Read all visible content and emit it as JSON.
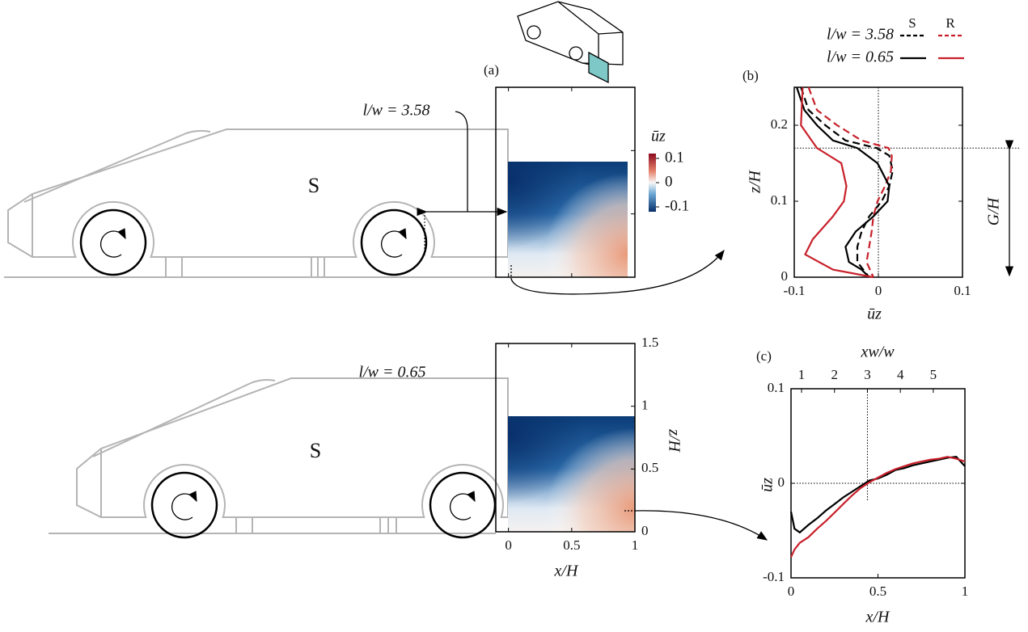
{
  "chart_data": [
    {
      "type": "heatmap",
      "label": "(a)",
      "xlabel": "x/H",
      "ylabel": "z/H",
      "xlim": [
        -0.1,
        1
      ],
      "xticks": [
        0,
        0.5,
        1
      ],
      "ylim": [
        0,
        1.5
      ],
      "yticks": [
        0,
        0.5,
        1,
        1.5
      ],
      "colorbar": {
        "label": "ūz",
        "lim": [
          -0.12,
          0.12
        ],
        "ticks": [
          0.1,
          0,
          -0.1
        ]
      },
      "annotations": [
        "l/w = 3.58",
        "S",
        "l/w = 0.65",
        "S"
      ]
    },
    {
      "type": "line",
      "label": "(b)",
      "xlabel": "ūz",
      "ylabel": "z/H",
      "annotation": "G/H",
      "xlim": [
        -0.1,
        0.1
      ],
      "xticks": [
        -0.1,
        0,
        0.1
      ],
      "ylim": [
        0,
        0.25
      ],
      "yticks": [
        0,
        0.1,
        0.2
      ],
      "refline_x": 0,
      "refline_y": 0.17,
      "legend": {
        "columns": [
          "S",
          "R"
        ],
        "rows": [
          "l/w = 3.58",
          "l/w = 0.65"
        ]
      },
      "series": [
        {
          "color": "#000000",
          "linestyle": "dashed",
          "x": [
            -0.092,
            -0.083,
            -0.063,
            -0.039,
            -0.002,
            0.013,
            0.017,
            0.013,
            0.004,
            -0.011,
            -0.02,
            -0.025,
            -0.025,
            -0.011
          ],
          "values": [
            0.25,
            0.22,
            0.2,
            0.18,
            0.17,
            0.16,
            0.14,
            0.12,
            0.1,
            0.08,
            0.06,
            0.04,
            0.02,
            0
          ]
        },
        {
          "color": "#c8202a",
          "linestyle": "dashed",
          "x": [
            -0.083,
            -0.073,
            -0.049,
            -0.02,
            0.012,
            0.016,
            0.015,
            0.008,
            -0.001,
            -0.006,
            -0.008,
            -0.011,
            -0.014,
            -0.006
          ],
          "values": [
            0.25,
            0.22,
            0.2,
            0.18,
            0.17,
            0.16,
            0.14,
            0.12,
            0.1,
            0.08,
            0.06,
            0.04,
            0.02,
            0
          ]
        },
        {
          "color": "#000000",
          "linestyle": "solid",
          "x": [
            -0.097,
            -0.088,
            -0.073,
            -0.054,
            -0.025,
            -0.001,
            0.013,
            0.011,
            -0.006,
            -0.027,
            -0.039,
            -0.035,
            -0.02,
            -0.011
          ],
          "values": [
            0.25,
            0.22,
            0.2,
            0.18,
            0.17,
            0.15,
            0.12,
            0.1,
            0.08,
            0.06,
            0.04,
            0.02,
            0.01,
            0
          ]
        },
        {
          "color": "#c8202a",
          "linestyle": "solid",
          "x": [
            -0.09,
            -0.092,
            -0.073,
            -0.044,
            -0.038,
            -0.041,
            -0.054,
            -0.078,
            -0.087,
            -0.054,
            -0.006
          ],
          "values": [
            0.25,
            0.2,
            0.17,
            0.15,
            0.12,
            0.1,
            0.08,
            0.05,
            0.03,
            0.01,
            0
          ]
        }
      ]
    },
    {
      "type": "line",
      "label": "(c)",
      "xlabel": "x/H",
      "x2label": "xw/w",
      "ylabel": "ūz",
      "xlim": [
        0,
        1
      ],
      "xticks": [
        0,
        0.5,
        1
      ],
      "x2lim": [
        0.68,
        5.96
      ],
      "x2ticks": [
        1,
        2,
        3,
        4,
        5
      ],
      "ylim": [
        -0.1,
        0.1
      ],
      "yticks": [
        -0.1,
        0,
        0.1
      ],
      "refline_y": 0,
      "refline_x2": 3,
      "series": [
        {
          "color": "#000000",
          "linestyle": "solid",
          "x": [
            0,
            0.02,
            0.05,
            0.1,
            0.15,
            0.2,
            0.25,
            0.3,
            0.35,
            0.4,
            0.45,
            0.5,
            0.55,
            0.6,
            0.65,
            0.7,
            0.75,
            0.8,
            0.85,
            0.9,
            0.95,
            1
          ],
          "values": [
            -0.03,
            -0.048,
            -0.052,
            -0.044,
            -0.037,
            -0.029,
            -0.022,
            -0.015,
            -0.009,
            -0.003,
            0.003,
            0.005,
            0.009,
            0.014,
            0.016,
            0.019,
            0.021,
            0.023,
            0.025,
            0.027,
            0.028,
            0.018
          ]
        },
        {
          "color": "#c8202a",
          "linestyle": "solid",
          "x": [
            0,
            0.02,
            0.05,
            0.1,
            0.15,
            0.2,
            0.25,
            0.3,
            0.35,
            0.4,
            0.45,
            0.5,
            0.55,
            0.6,
            0.65,
            0.7,
            0.75,
            0.8,
            0.85,
            0.9,
            0.95,
            1
          ],
          "values": [
            -0.078,
            -0.07,
            -0.063,
            -0.057,
            -0.048,
            -0.04,
            -0.031,
            -0.022,
            -0.013,
            -0.005,
            0.001,
            0.006,
            0.011,
            0.015,
            0.018,
            0.021,
            0.023,
            0.025,
            0.026,
            0.028,
            0.026,
            0.023
          ]
        }
      ]
    }
  ]
}
